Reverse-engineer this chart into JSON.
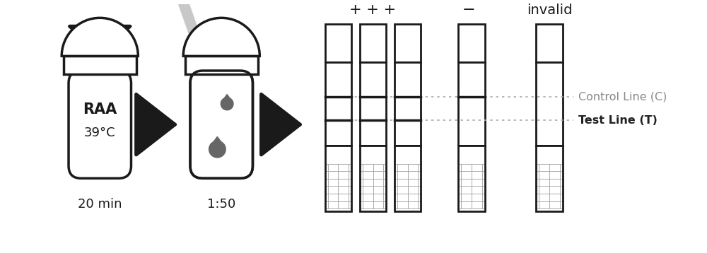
{
  "bg_color": "#ffffff",
  "text_color": "#1a1a1a",
  "gray_color": "#888888",
  "light_gray": "#c8c8c8",
  "dark_gray": "#666666",
  "arrow_color": "#1a1a1a",
  "tube1_label1": "RAA",
  "tube1_label2": "39°C",
  "tube1_bottom_label": "20 min",
  "tube2_bottom_label": "1:50",
  "control_line_label": "Control Line (C)",
  "test_line_label": "Test Line (T)",
  "label_color_cl": "#888888",
  "label_color_tl": "#222222",
  "figw": 10.0,
  "figh": 3.58,
  "dpi": 100
}
